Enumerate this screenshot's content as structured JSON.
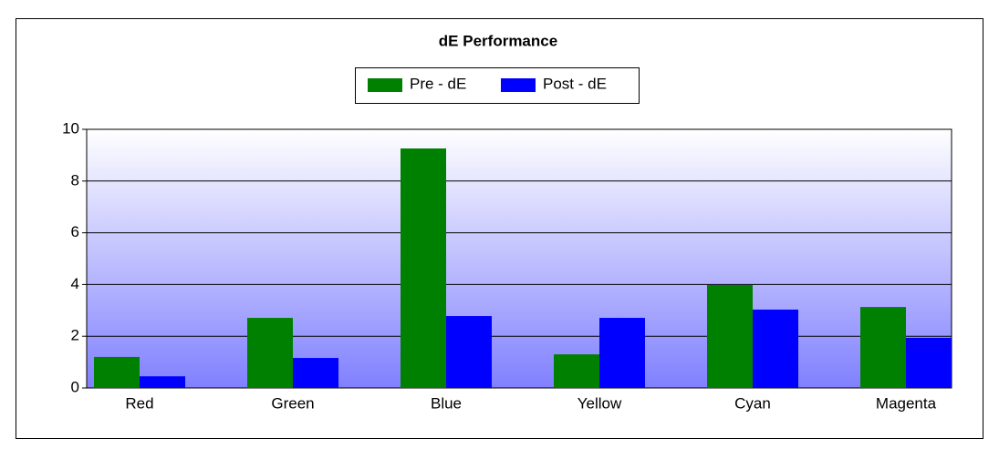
{
  "chart_data": {
    "type": "bar",
    "title": "dE Performance",
    "categories": [
      "Red",
      "Green",
      "Blue",
      "Yellow",
      "Cyan",
      "Magenta"
    ],
    "series": [
      {
        "name": "Pre - dE",
        "color": "#008000",
        "values": [
          1.2,
          2.71,
          9.26,
          1.3,
          3.98,
          3.13
        ]
      },
      {
        "name": "Post - dE",
        "color": "#0000ff",
        "values": [
          0.45,
          1.16,
          2.78,
          2.71,
          3.03,
          1.94
        ]
      }
    ],
    "ylim": [
      0,
      10
    ],
    "yticks": [
      0,
      2,
      4,
      6,
      8,
      10
    ],
    "grid": true,
    "legend": "top"
  }
}
